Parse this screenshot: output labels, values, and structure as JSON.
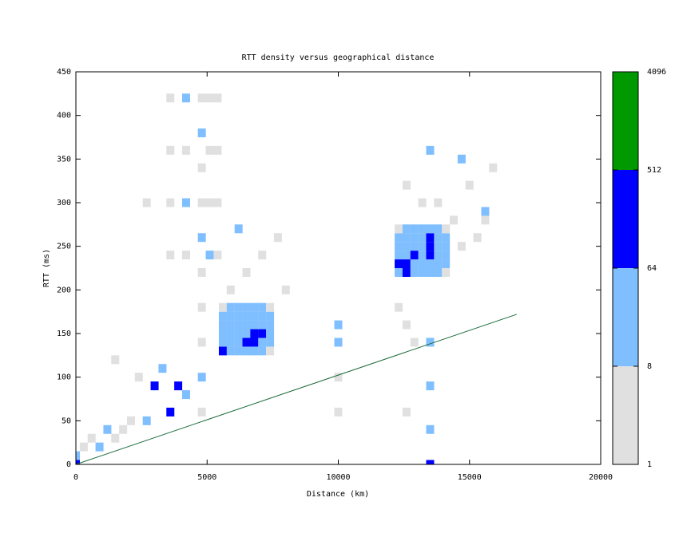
{
  "chart_data": {
    "type": "heatmap",
    "title": "RTT density versus geographical distance",
    "xlabel": "Distance (km)",
    "ylabel": "RTT (ms)",
    "xlim": [
      0,
      20000
    ],
    "xticks": [
      0,
      5000,
      10000,
      15000,
      20000
    ],
    "ylim": [
      0,
      450
    ],
    "yticks": [
      0,
      50,
      100,
      150,
      200,
      250,
      300,
      350,
      400,
      450
    ],
    "x": [
      0,
      0,
      300,
      600,
      900,
      1200,
      1500,
      1800,
      2100,
      2700,
      3000,
      3300,
      3600,
      3900,
      4200,
      2400,
      2700,
      1500,
      3600,
      3600,
      3600,
      3600,
      4200,
      4200,
      4200,
      4200,
      5100,
      5100,
      5100,
      5100,
      5400,
      5400,
      5400,
      5400,
      4800,
      4800,
      4800,
      4800,
      4800,
      4800,
      4800,
      4800,
      4800,
      4800,
      5600,
      5600,
      5600,
      5600,
      5600,
      5600,
      5900,
      5900,
      5900,
      5900,
      5900,
      5900,
      6200,
      6200,
      6200,
      6200,
      6200,
      6200,
      6500,
      6500,
      6500,
      6500,
      6500,
      6500,
      6800,
      6800,
      6800,
      6800,
      6800,
      6800,
      7100,
      7100,
      7100,
      7100,
      7100,
      7100,
      7400,
      7400,
      7400,
      7400,
      7400,
      7400,
      5900,
      6500,
      7100,
      7700,
      8000,
      6200,
      10000,
      10000,
      10000,
      10000,
      12300,
      12300,
      12300,
      12300,
      12300,
      12300,
      12600,
      12600,
      12600,
      12600,
      12600,
      12600,
      12900,
      12900,
      12900,
      12900,
      12900,
      12900,
      13200,
      13200,
      13200,
      13200,
      13200,
      13200,
      13500,
      13500,
      13500,
      13500,
      13500,
      13500,
      13800,
      13800,
      13800,
      13800,
      13800,
      13800,
      14100,
      14100,
      14100,
      14100,
      14100,
      14100,
      12300,
      12600,
      12900,
      13200,
      13800,
      14400,
      14700,
      15000,
      15300,
      15600,
      15900,
      12600,
      13500,
      14700,
      15600,
      13500,
      13500,
      13500,
      13500,
      12600
    ],
    "y": [
      0,
      10,
      20,
      30,
      20,
      40,
      30,
      40,
      50,
      50,
      90,
      110,
      60,
      90,
      80,
      100,
      300,
      120,
      240,
      300,
      360,
      420,
      240,
      300,
      360,
      420,
      240,
      300,
      360,
      420,
      240,
      300,
      360,
      420,
      60,
      100,
      140,
      180,
      220,
      260,
      300,
      340,
      380,
      420,
      130,
      140,
      150,
      160,
      170,
      180,
      130,
      140,
      150,
      160,
      170,
      180,
      130,
      140,
      150,
      160,
      170,
      180,
      130,
      140,
      150,
      160,
      170,
      180,
      130,
      140,
      150,
      160,
      170,
      180,
      130,
      140,
      150,
      160,
      170,
      180,
      130,
      140,
      150,
      160,
      170,
      180,
      200,
      220,
      240,
      260,
      200,
      270,
      140,
      160,
      100,
      60,
      220,
      230,
      240,
      250,
      260,
      270,
      220,
      230,
      240,
      250,
      260,
      270,
      220,
      230,
      240,
      250,
      260,
      270,
      220,
      230,
      240,
      250,
      260,
      270,
      220,
      230,
      240,
      250,
      260,
      270,
      220,
      230,
      240,
      250,
      260,
      270,
      220,
      230,
      240,
      250,
      260,
      270,
      180,
      160,
      140,
      300,
      300,
      280,
      250,
      320,
      260,
      280,
      340,
      320,
      360,
      350,
      290,
      140,
      90,
      40,
      0,
      60
    ],
    "values": [
      200,
      20,
      2,
      2,
      20,
      20,
      2,
      2,
      2,
      20,
      100,
      20,
      100,
      100,
      20,
      2,
      2,
      2,
      2,
      2,
      2,
      2,
      2,
      20,
      2,
      20,
      20,
      2,
      2,
      2,
      2,
      2,
      2,
      2,
      2,
      20,
      2,
      2,
      2,
      20,
      2,
      2,
      20,
      2,
      100,
      20,
      20,
      20,
      20,
      2,
      20,
      20,
      20,
      20,
      20,
      20,
      20,
      20,
      20,
      20,
      20,
      20,
      20,
      100,
      20,
      20,
      20,
      20,
      20,
      100,
      100,
      20,
      20,
      20,
      20,
      20,
      100,
      20,
      20,
      20,
      2,
      20,
      20,
      20,
      20,
      2,
      2,
      2,
      2,
      2,
      2,
      20,
      20,
      20,
      2,
      2,
      20,
      100,
      20,
      20,
      20,
      2,
      100,
      100,
      20,
      20,
      20,
      20,
      20,
      20,
      100,
      20,
      20,
      20,
      20,
      20,
      20,
      20,
      20,
      20,
      20,
      20,
      100,
      100,
      100,
      20,
      20,
      20,
      20,
      20,
      20,
      20,
      2,
      20,
      20,
      20,
      20,
      2,
      2,
      2,
      2,
      2,
      2,
      2,
      2,
      2,
      2,
      2,
      2,
      2,
      20,
      20,
      20,
      20,
      20,
      20,
      100,
      2
    ],
    "overlay": {
      "type": "line",
      "x": [
        0,
        16800
      ],
      "values": [
        0,
        172
      ],
      "color": "#1a6b3a"
    },
    "colorbar": {
      "log": true,
      "lim": [
        1,
        4096
      ],
      "ticks": [
        1,
        8,
        64,
        512,
        4096
      ],
      "colors": [
        "#e0e0e0",
        "#80bfff",
        "#0000ff",
        "#009900"
      ]
    }
  }
}
